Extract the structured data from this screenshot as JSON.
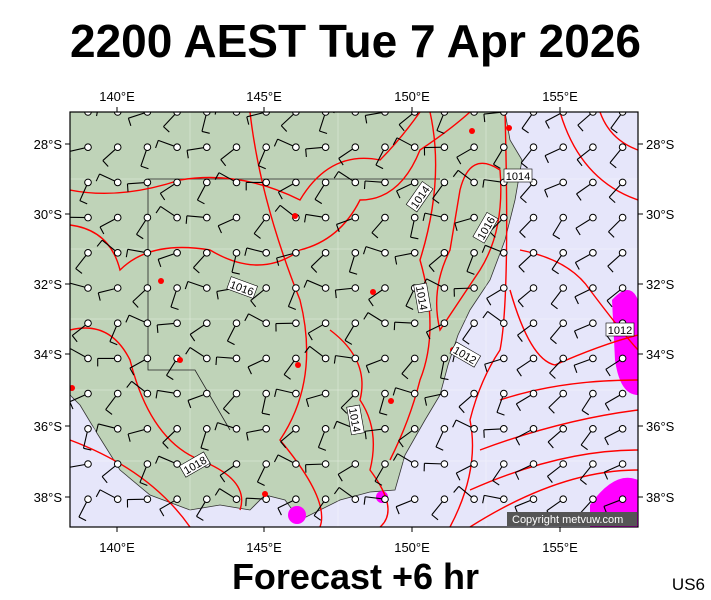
{
  "title": "2200 AEST Tue 7 Apr 2026",
  "footer": "Forecast +6 hr",
  "code": "US6",
  "copyright": "Copyright metvuw.com",
  "lon_labels": [
    "140°E",
    "145°E",
    "150°E",
    "155°E"
  ],
  "lat_labels": [
    "28°S",
    "30°S",
    "32°S",
    "34°S",
    "36°S",
    "38°S"
  ],
  "isobar_labels": [
    "1014",
    "1014",
    "1016",
    "1016",
    "1014",
    "1012",
    "1012",
    "1014",
    "1018"
  ],
  "colors": {
    "land": "#bfd3b8",
    "sea": "#e6e6fa",
    "isobar": "#ff0000",
    "high_wind": "#ff00ff"
  }
}
